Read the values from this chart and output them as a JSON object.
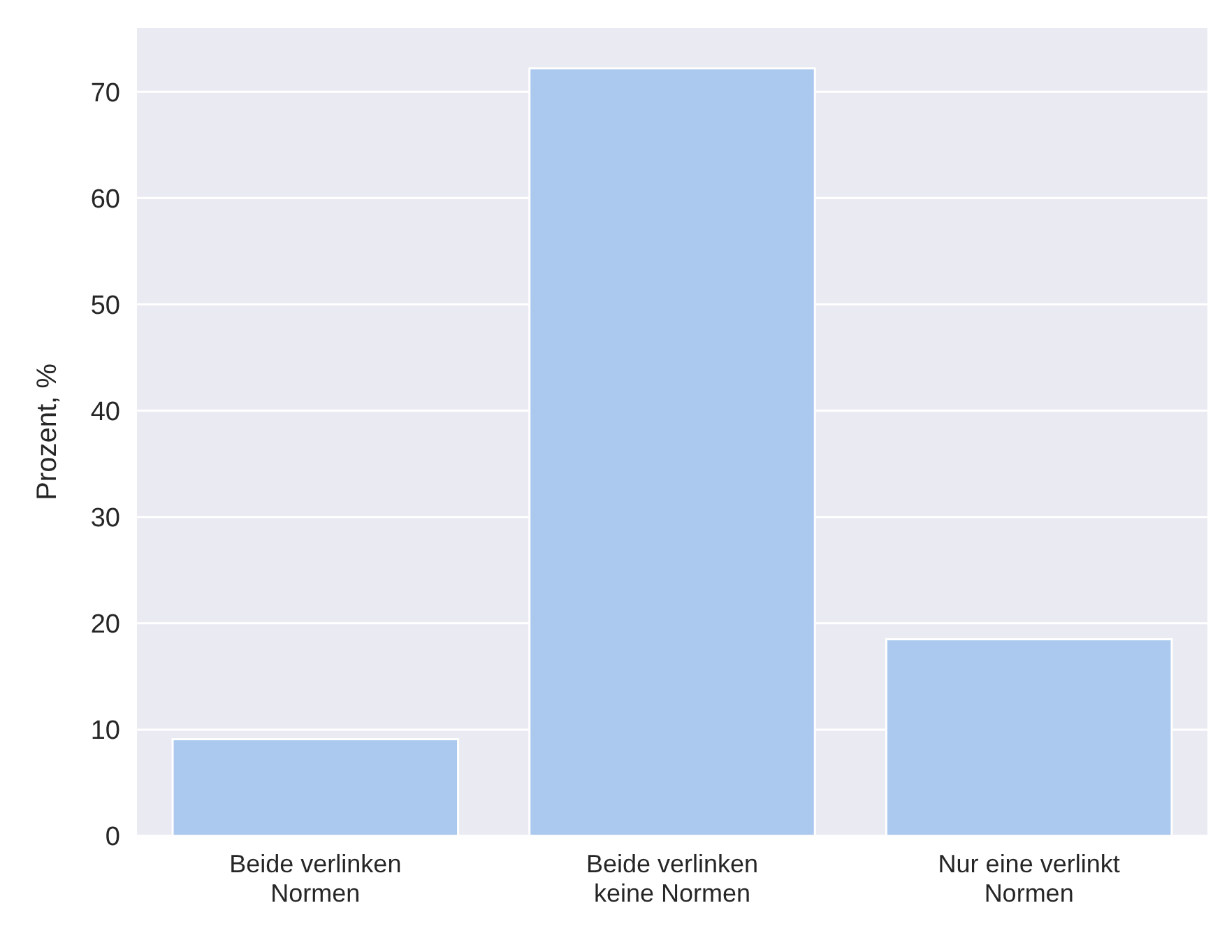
{
  "chart_data": {
    "type": "bar",
    "ylabel": "Prozent, %",
    "categories": [
      "Beide verlinken\nNormen",
      "Beide verlinken\nkeine Normen",
      "Nur eine verlinkt\nNormen"
    ],
    "values": [
      9.1,
      72.2,
      18.5
    ],
    "color": "#abc9ee",
    "ylim": [
      0,
      76
    ],
    "yticks": [
      0,
      10,
      20,
      30,
      40,
      50,
      60,
      70
    ],
    "grid": "y"
  }
}
